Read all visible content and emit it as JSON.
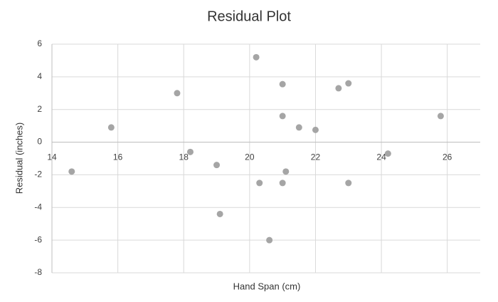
{
  "chart_data": {
    "type": "scatter",
    "title": "Residual Plot",
    "x_label": "Hand Span (cm)",
    "y_label": "Residual (inches)",
    "color": "#a5a5a5",
    "x": [
      14.6,
      15.8,
      17.8,
      18.2,
      19.0,
      19.1,
      20.2,
      20.3,
      20.6,
      21.0,
      21.0,
      21.0,
      21.1,
      21.5,
      22.0,
      22.7,
      23.0,
      23.0,
      24.2,
      25.8
    ],
    "values": [
      -1.8,
      0.9,
      3.0,
      -0.6,
      -1.4,
      -4.4,
      5.2,
      -2.5,
      -6.0,
      3.55,
      1.6,
      -2.5,
      -1.8,
      0.9,
      0.75,
      3.3,
      3.6,
      -2.5,
      -0.7,
      1.6
    ],
    "xlim": [
      14,
      27
    ],
    "xticks": [
      14,
      16,
      18,
      20,
      22,
      24,
      26
    ],
    "ylim": [
      -8,
      6
    ],
    "yticks": [
      -8,
      -6,
      -4,
      -2,
      0,
      2,
      4,
      6
    ],
    "grid": true
  }
}
